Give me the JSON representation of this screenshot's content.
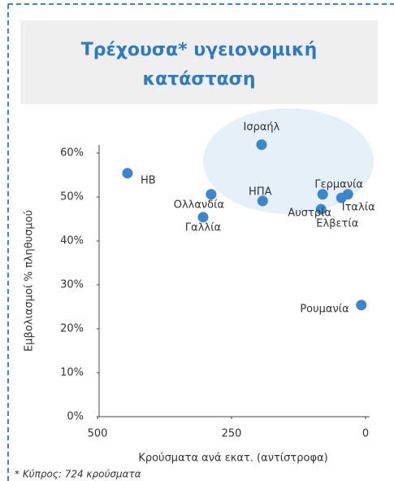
{
  "chart_data": {
    "type": "scatter",
    "title": "Τρέχουσα* υγειονομική",
    "title_line2": "κατάσταση",
    "x_label": "Κρούσματα ανά εκατ. (αντίστροφα)",
    "y_label": "Εμβολιασμοί % πληθυσμού",
    "footnote": "* Κύπρος: 724 κρούσματα",
    "labels": [
      "ΗΒ",
      "Ισραήλ",
      "Ολλανδία",
      "Γαλλία",
      "ΗΠΑ",
      "Γερμανία",
      "Αυστρία",
      "Ελβετία",
      "Ιταλία",
      "Ρουμανία"
    ],
    "x": [
      444,
      194,
      288,
      303,
      192,
      80,
      83,
      45,
      33,
      8
    ],
    "values": [
      55.4,
      61.9,
      50.6,
      45.4,
      49.1,
      50.6,
      47.2,
      49.8,
      50.6,
      25.4
    ],
    "color": "#3a87cf",
    "xlim": [
      500,
      0
    ],
    "xticks": [
      500,
      250,
      0
    ],
    "ylim": [
      0,
      62
    ],
    "yticks": [
      {
        "value": 0,
        "label": "0%"
      },
      {
        "value": 10,
        "label": "10%"
      },
      {
        "value": 20,
        "label": "20%"
      },
      {
        "value": 30,
        "label": "30%"
      },
      {
        "value": 40,
        "label": "40%"
      },
      {
        "value": 50,
        "label": "50%"
      },
      {
        "value": 60,
        "label": "60%"
      }
    ],
    "grid": false
  }
}
